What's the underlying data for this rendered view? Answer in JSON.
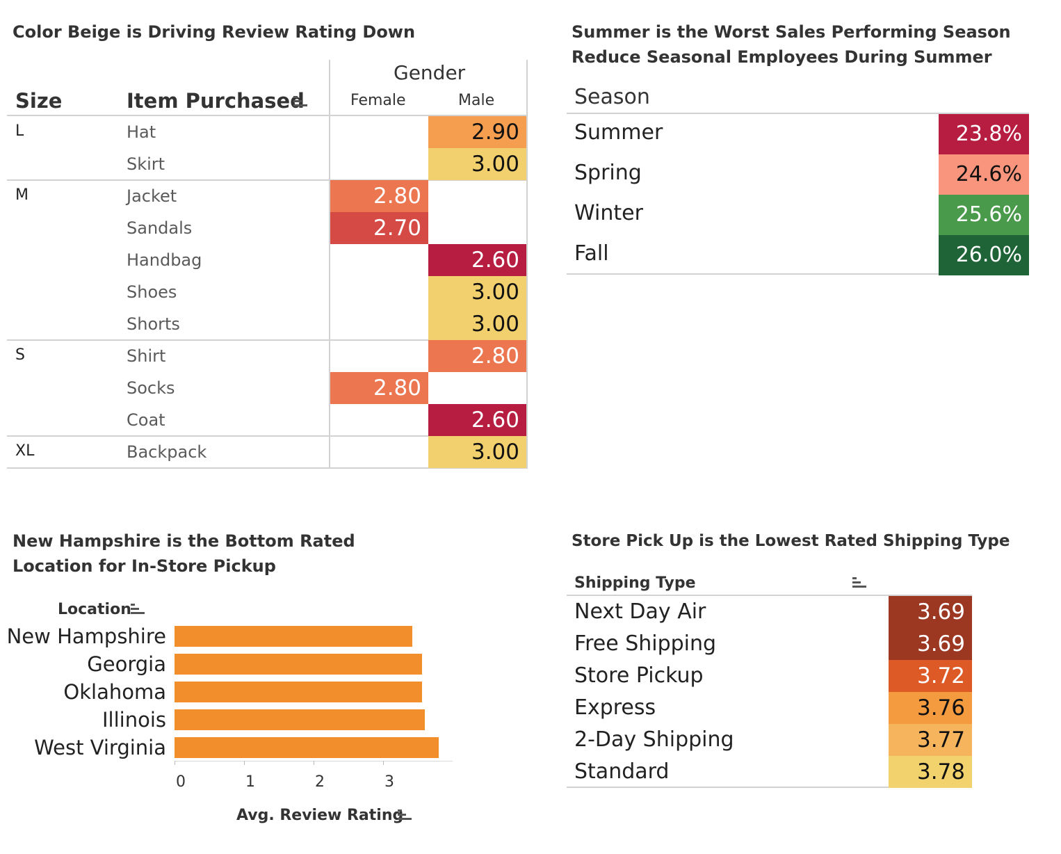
{
  "chart_data": [
    {
      "type": "table",
      "title": "Color Beige is Driving Review Rating Down",
      "row_headers": [
        "Size",
        "Item Purchased"
      ],
      "column_group": "Gender",
      "columns": [
        "Female",
        "Male"
      ],
      "rows": [
        {
          "size": "L",
          "item": "Hat",
          "female": null,
          "male": "2.90",
          "male_color": "#f59e4f"
        },
        {
          "size": "",
          "item": "Skirt",
          "female": null,
          "male": "3.00",
          "male_color": "#f1d06d"
        },
        {
          "size": "M",
          "item": "Jacket",
          "female": "2.80",
          "male": null,
          "female_color": "#ec7650"
        },
        {
          "size": "",
          "item": "Sandals",
          "female": "2.70",
          "male": null,
          "female_color": "#d54a45"
        },
        {
          "size": "",
          "item": "Handbag",
          "female": null,
          "male": "2.60",
          "male_color": "#b71d40"
        },
        {
          "size": "",
          "item": "Shoes",
          "female": null,
          "male": "3.00",
          "male_color": "#f1d06d"
        },
        {
          "size": "",
          "item": "Shorts",
          "female": null,
          "male": "3.00",
          "male_color": "#f1d06d"
        },
        {
          "size": "S",
          "item": "Shirt",
          "female": null,
          "male": "2.80",
          "male_color": "#ec7650"
        },
        {
          "size": "",
          "item": "Socks",
          "female": "2.80",
          "male": null,
          "female_color": "#ec7650"
        },
        {
          "size": "",
          "item": "Coat",
          "female": null,
          "male": "2.60",
          "male_color": "#b71d40"
        },
        {
          "size": "XL",
          "item": "Backpack",
          "female": null,
          "male": "3.00",
          "male_color": "#f1d06d"
        }
      ]
    },
    {
      "type": "table",
      "title": "Summer is the Worst Sales Performing Season",
      "subtitle": "Reduce Seasonal Employees  During Summer",
      "row_header": "Season",
      "rows": [
        {
          "label": "Summer",
          "value": "23.8%",
          "color": "#b71d40",
          "light": true
        },
        {
          "label": "Spring",
          "value": "24.6%",
          "color": "#f8957c",
          "light": false
        },
        {
          "label": "Winter",
          "value": "25.6%",
          "color": "#4a9a4c",
          "light": true
        },
        {
          "label": "Fall",
          "value": "26.0%",
          "color": "#1f6437",
          "light": true
        }
      ]
    },
    {
      "type": "bar",
      "title": "New Hampshire is the Bottom Rated",
      "subtitle": "Location for In-Store Pickup",
      "ylabel": "Location",
      "xlabel": "Avg. Review Rating",
      "categories": [
        "New Hampshire",
        "Georgia",
        "Oklahoma",
        "Illinois",
        "West Virginia"
      ],
      "values": [
        3.42,
        3.56,
        3.56,
        3.6,
        3.8
      ],
      "xticks": [
        "0",
        "1",
        "2",
        "3"
      ],
      "xlim": [
        0,
        3.9
      ],
      "bar_color": "#f28e2c"
    },
    {
      "type": "table",
      "title": "Store Pick Up is the Lowest Rated Shipping Type",
      "row_header": "Shipping Type",
      "rows": [
        {
          "label": "Next Day Air",
          "value": "3.69",
          "color": "#9c3822",
          "light": true
        },
        {
          "label": "Free Shipping",
          "value": "3.69",
          "color": "#9c3822",
          "light": true
        },
        {
          "label": "Store Pickup",
          "value": "3.72",
          "color": "#dd5926",
          "light": true
        },
        {
          "label": "Express",
          "value": "3.76",
          "color": "#f49a3f",
          "light": false
        },
        {
          "label": "2-Day Shipping",
          "value": "3.77",
          "color": "#f6b55c",
          "light": false
        },
        {
          "label": "Standard",
          "value": "3.78",
          "color": "#f1d26d",
          "light": false
        }
      ]
    }
  ]
}
